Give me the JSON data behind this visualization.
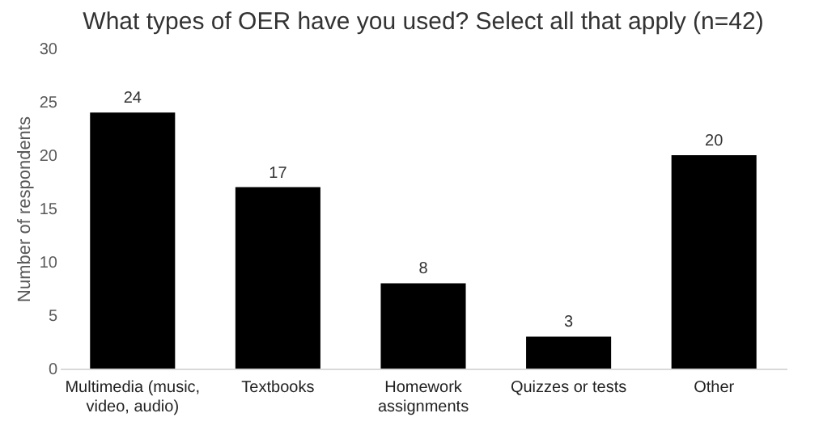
{
  "chart_data": {
    "type": "bar",
    "title": "What types of OER have you used? Select all that apply (n=42)",
    "ylabel": "Number of respondents",
    "categories": [
      "Multimedia (music, video, audio)",
      "Textbooks",
      "Homework assignments",
      "Quizzes or tests",
      "Other"
    ],
    "values": [
      24,
      17,
      8,
      3,
      20
    ],
    "color": "#000000",
    "ylim": [
      0,
      30
    ],
    "yticks": [
      0,
      5,
      10,
      15,
      20,
      25,
      30
    ],
    "grid": false,
    "data_labels": true
  }
}
